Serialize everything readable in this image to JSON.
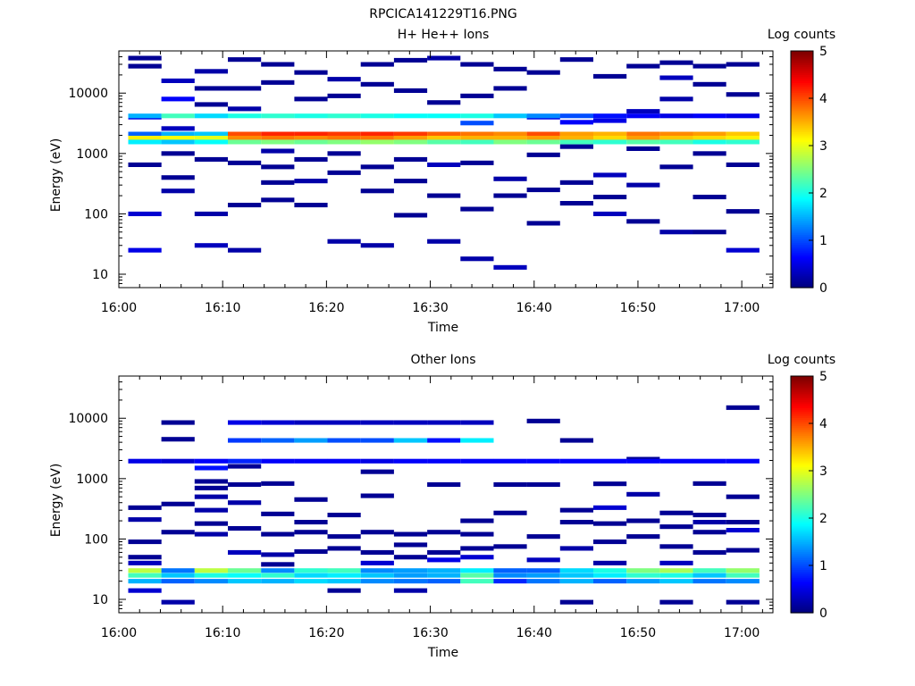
{
  "file_title": "RPCICA141229T16.PNG",
  "chart_data": [
    {
      "type": "heatmap",
      "title": "H+ He++ Ions",
      "xlabel": "Time",
      "ylabel": "Energy (eV)",
      "colorbar_label": "Log counts",
      "x_ticks": [
        "16:00",
        "16:10",
        "16:20",
        "16:30",
        "16:40",
        "16:50",
        "17:00"
      ],
      "y_ticks": [
        "10",
        "100",
        "1000",
        "10000"
      ],
      "colorbar_ticks": [
        "0",
        "1",
        "2",
        "3",
        "4",
        "5"
      ],
      "xlim_minutes": [
        0,
        63
      ],
      "ylim_eV": [
        6,
        50000
      ],
      "y_scale": "log",
      "clim": [
        0,
        5
      ],
      "colormap": "jet",
      "time_bins_start_min": [
        0.9,
        4.1,
        7.3,
        10.5,
        13.7,
        16.9,
        20.1,
        23.3,
        26.5,
        29.7,
        32.9,
        36.1,
        39.3,
        42.5,
        45.7,
        48.9,
        52.1,
        55.3,
        58.5
      ],
      "bin_width_min": 3.2,
      "bands": [
        {
          "e": 2100,
          "v": [
            1.1,
            1.5,
            1.6,
            4.0,
            4.2,
            4.2,
            4.1,
            4.2,
            4.1,
            3.9,
            3.8,
            3.7,
            4.0,
            3.6,
            3.5,
            3.8,
            3.7,
            3.6,
            3.4
          ]
        },
        {
          "e": 1800,
          "v": [
            3.2,
            3.1,
            3.0,
            3.7,
            3.8,
            3.7,
            3.8,
            3.8,
            3.6,
            3.4,
            3.5,
            3.5,
            3.6,
            3.5,
            3.3,
            3.6,
            3.4,
            3.3,
            3.2
          ]
        },
        {
          "e": 1550,
          "v": [
            1.8,
            1.6,
            1.9,
            2.4,
            2.5,
            2.4,
            2.5,
            2.6,
            2.5,
            2.3,
            2.2,
            2.5,
            2.4,
            2.2,
            2.1,
            2.3,
            2.2,
            2.0,
            2.1
          ]
        },
        {
          "e": 4200,
          "v": [
            1.5,
            2.2,
            1.7,
            2.0,
            2.1,
            2.0,
            2.1,
            2.0,
            1.9,
            1.9,
            2.0,
            1.6,
            1.3,
            1.0,
            0.7,
            0.6,
            0.5,
            0.6,
            0.5
          ]
        }
      ],
      "sparse_cells": [
        [
          0,
          38000,
          0.1
        ],
        [
          0,
          28000,
          0.1
        ],
        [
          0,
          4000,
          0.5
        ],
        [
          0,
          650,
          0.1
        ],
        [
          0,
          100,
          0.4
        ],
        [
          0,
          28000,
          0.1
        ],
        [
          0,
          25,
          0.5
        ],
        [
          1,
          16000,
          0.3
        ],
        [
          1,
          8000,
          0.6
        ],
        [
          1,
          2600,
          0.3
        ],
        [
          1,
          1000,
          0.1
        ],
        [
          1,
          240,
          0.2
        ],
        [
          1,
          400,
          0.1
        ],
        [
          2,
          23000,
          0.2
        ],
        [
          2,
          12000,
          0.1
        ],
        [
          2,
          6500,
          0.1
        ],
        [
          2,
          800,
          0.1
        ],
        [
          2,
          100,
          0.2
        ],
        [
          2,
          30,
          0.3
        ],
        [
          3,
          36000,
          0.1
        ],
        [
          3,
          12000,
          0.1
        ],
        [
          3,
          5500,
          0.2
        ],
        [
          3,
          700,
          0.1
        ],
        [
          3,
          140,
          0.1
        ],
        [
          3,
          25,
          0.2
        ],
        [
          4,
          30000,
          0.1
        ],
        [
          4,
          15000,
          0.1
        ],
        [
          4,
          1100,
          0.2
        ],
        [
          4,
          600,
          0.1
        ],
        [
          4,
          330,
          0.1
        ],
        [
          4,
          170,
          0.1
        ],
        [
          5,
          22000,
          0.1
        ],
        [
          5,
          8000,
          0.1
        ],
        [
          5,
          800,
          0.1
        ],
        [
          5,
          350,
          0.2
        ],
        [
          5,
          140,
          0.1
        ],
        [
          6,
          17000,
          0.2
        ],
        [
          6,
          9000,
          0.1
        ],
        [
          6,
          1000,
          0.1
        ],
        [
          6,
          480,
          0.1
        ],
        [
          6,
          35,
          0.2
        ],
        [
          7,
          30000,
          0.1
        ],
        [
          7,
          14000,
          0.1
        ],
        [
          7,
          600,
          0.1
        ],
        [
          7,
          240,
          0.1
        ],
        [
          7,
          30,
          0.2
        ],
        [
          8,
          35000,
          0.1
        ],
        [
          8,
          11000,
          0.1
        ],
        [
          8,
          800,
          0.1
        ],
        [
          8,
          350,
          0.1
        ],
        [
          8,
          95,
          0.1
        ],
        [
          9,
          38000,
          0.2
        ],
        [
          9,
          7000,
          0.1
        ],
        [
          9,
          650,
          0.3
        ],
        [
          9,
          200,
          0.1
        ],
        [
          9,
          35,
          0.2
        ],
        [
          10,
          30000,
          0.1
        ],
        [
          10,
          9000,
          0.1
        ],
        [
          10,
          3200,
          1.0
        ],
        [
          10,
          700,
          0.1
        ],
        [
          10,
          120,
          0.1
        ],
        [
          10,
          18,
          0.2
        ],
        [
          11,
          25000,
          0.1
        ],
        [
          11,
          12000,
          0.1
        ],
        [
          11,
          380,
          0.2
        ],
        [
          11,
          200,
          0.1
        ],
        [
          11,
          13,
          0.3
        ],
        [
          12,
          22000,
          0.1
        ],
        [
          12,
          4000,
          0.5
        ],
        [
          12,
          950,
          0.1
        ],
        [
          12,
          250,
          0.1
        ],
        [
          12,
          70,
          0.1
        ],
        [
          13,
          36000,
          0.1
        ],
        [
          13,
          3300,
          0.6
        ],
        [
          13,
          1300,
          0.1
        ],
        [
          13,
          330,
          0.1
        ],
        [
          13,
          150,
          0.1
        ],
        [
          14,
          19000,
          0.1
        ],
        [
          14,
          3500,
          0.5
        ],
        [
          14,
          440,
          0.3
        ],
        [
          14,
          190,
          0.1
        ],
        [
          14,
          100,
          0.3
        ],
        [
          15,
          28000,
          0.1
        ],
        [
          15,
          5000,
          0.3
        ],
        [
          15,
          1200,
          0.1
        ],
        [
          15,
          300,
          0.2
        ],
        [
          15,
          75,
          0.1
        ],
        [
          16,
          32000,
          0.1
        ],
        [
          16,
          18000,
          0.3
        ],
        [
          16,
          8000,
          0.2
        ],
        [
          16,
          600,
          0.1
        ],
        [
          16,
          50,
          0.2
        ],
        [
          17,
          28000,
          0.1
        ],
        [
          17,
          14000,
          0.1
        ],
        [
          17,
          1000,
          0.1
        ],
        [
          17,
          190,
          0.1
        ],
        [
          17,
          50,
          0.1
        ],
        [
          18,
          30000,
          0.1
        ],
        [
          18,
          9500,
          0.1
        ],
        [
          18,
          650,
          0.1
        ],
        [
          18,
          110,
          0.1
        ],
        [
          18,
          25,
          0.4
        ]
      ]
    },
    {
      "type": "heatmap",
      "title": "Other Ions",
      "xlabel": "Time",
      "ylabel": "Energy (eV)",
      "colorbar_label": "Log counts",
      "x_ticks": [
        "16:00",
        "16:10",
        "16:20",
        "16:30",
        "16:40",
        "16:50",
        "17:00"
      ],
      "y_ticks": [
        "10",
        "100",
        "1000",
        "10000"
      ],
      "colorbar_ticks": [
        "0",
        "1",
        "2",
        "3",
        "4",
        "5"
      ],
      "xlim_minutes": [
        0,
        63
      ],
      "ylim_eV": [
        6,
        50000
      ],
      "y_scale": "log",
      "clim": [
        0,
        5
      ],
      "colormap": "jet",
      "time_bins_start_min": [
        0.9,
        4.1,
        7.3,
        10.5,
        13.7,
        16.9,
        20.1,
        23.3,
        26.5,
        29.7,
        32.9,
        36.1,
        39.3,
        42.5,
        45.7,
        48.9,
        52.1,
        55.3,
        58.5
      ],
      "bin_width_min": 3.2,
      "bands": [
        {
          "e": 30,
          "v": [
            2.8,
            1.2,
            2.8,
            2.4,
            1.3,
            2.1,
            2.2,
            1.3,
            1.4,
            1.5,
            1.8,
            1.1,
            1.1,
            1.7,
            2.0,
            2.5,
            2.7,
            2.2,
            2.6
          ]
        },
        {
          "e": 25,
          "v": [
            2.2,
            1.6,
            2.0,
            1.9,
            2.1,
            1.7,
            1.8,
            1.6,
            1.4,
            1.5,
            2.3,
            1.3,
            1.4,
            1.6,
            1.8,
            2.1,
            2.0,
            1.6,
            2.2
          ]
        },
        {
          "e": 20,
          "v": [
            1.5,
            1.1,
            1.3,
            1.6,
            1.5,
            1.7,
            1.6,
            1.3,
            1.2,
            1.1,
            2.2,
            0.8,
            1.2,
            1.5,
            1.1,
            1.4,
            1.6,
            1.2,
            1.3
          ]
        },
        {
          "e": 1950,
          "v": [
            0.5,
            0.4,
            0.6,
            0.8,
            0.6,
            0.6,
            0.6,
            0.5,
            0.6,
            0.6,
            0.6,
            0.6,
            0.6,
            0.6,
            0.6,
            0.6,
            0.6,
            0.6,
            0.6
          ]
        },
        {
          "e": 4300,
          "v": [
            0,
            0,
            0,
            0.9,
            1.1,
            1.4,
            1.0,
            1.0,
            1.6,
            0.7,
            1.8,
            0,
            0,
            0,
            0,
            0,
            0,
            0,
            0
          ]
        },
        {
          "e": 8500,
          "v": [
            0,
            0,
            0,
            0.5,
            0.4,
            0.3,
            0.3,
            0.3,
            0.3,
            0.3,
            0.3,
            0,
            0,
            0,
            0,
            0,
            0,
            0,
            0
          ]
        }
      ],
      "sparse_cells": [
        [
          0,
          210,
          0.2
        ],
        [
          0,
          90,
          0.1
        ],
        [
          0,
          50,
          0.1
        ],
        [
          0,
          40,
          0.3
        ],
        [
          0,
          14,
          0.4
        ],
        [
          0,
          330,
          0.1
        ],
        [
          1,
          8500,
          0.1
        ],
        [
          1,
          4500,
          0.1
        ],
        [
          1,
          380,
          0.1
        ],
        [
          1,
          130,
          0.1
        ],
        [
          1,
          9,
          0.2
        ],
        [
          2,
          1500,
          0.7
        ],
        [
          2,
          900,
          0.1
        ],
        [
          2,
          700,
          0.1
        ],
        [
          2,
          500,
          0.2
        ],
        [
          2,
          300,
          0.2
        ],
        [
          2,
          180,
          0.1
        ],
        [
          2,
          120,
          0.2
        ],
        [
          3,
          1600,
          0.1
        ],
        [
          3,
          800,
          0.1
        ],
        [
          3,
          400,
          0.2
        ],
        [
          3,
          150,
          0.1
        ],
        [
          3,
          60,
          0.3
        ],
        [
          4,
          830,
          0.1
        ],
        [
          4,
          260,
          0.1
        ],
        [
          4,
          120,
          0.1
        ],
        [
          4,
          55,
          0.2
        ],
        [
          4,
          38,
          0.1
        ],
        [
          5,
          450,
          0.1
        ],
        [
          5,
          190,
          0.1
        ],
        [
          5,
          130,
          0.1
        ],
        [
          5,
          62,
          0.1
        ],
        [
          6,
          250,
          0.1
        ],
        [
          6,
          110,
          0.1
        ],
        [
          6,
          70,
          0.1
        ],
        [
          6,
          14,
          0.1
        ],
        [
          7,
          1300,
          0.1
        ],
        [
          7,
          520,
          0.1
        ],
        [
          7,
          130,
          0.1
        ],
        [
          7,
          60,
          0.1
        ],
        [
          7,
          40,
          0.4
        ],
        [
          8,
          120,
          0.1
        ],
        [
          8,
          80,
          0.1
        ],
        [
          8,
          50,
          0.1
        ],
        [
          8,
          14,
          0.2
        ],
        [
          9,
          800,
          0.1
        ],
        [
          9,
          130,
          0.1
        ],
        [
          9,
          60,
          0.1
        ],
        [
          9,
          45,
          0.5
        ],
        [
          10,
          200,
          0.1
        ],
        [
          10,
          120,
          0.1
        ],
        [
          10,
          70,
          0.1
        ],
        [
          10,
          50,
          0.4
        ],
        [
          11,
          800,
          0.1
        ],
        [
          11,
          270,
          0.1
        ],
        [
          11,
          75,
          0.1
        ],
        [
          12,
          9000,
          0.1
        ],
        [
          12,
          800,
          0.1
        ],
        [
          12,
          110,
          0.1
        ],
        [
          12,
          45,
          0.3
        ],
        [
          13,
          4300,
          0.1
        ],
        [
          13,
          300,
          0.1
        ],
        [
          13,
          190,
          0.1
        ],
        [
          13,
          70,
          0.2
        ],
        [
          13,
          9,
          0.1
        ],
        [
          14,
          820,
          0.1
        ],
        [
          14,
          330,
          0.4
        ],
        [
          14,
          180,
          0.1
        ],
        [
          14,
          90,
          0.1
        ],
        [
          14,
          40,
          0.2
        ],
        [
          15,
          2100,
          0.1
        ],
        [
          15,
          550,
          0.2
        ],
        [
          15,
          200,
          0.1
        ],
        [
          15,
          110,
          0.1
        ],
        [
          16,
          270,
          0.1
        ],
        [
          16,
          160,
          0.1
        ],
        [
          16,
          75,
          0.1
        ],
        [
          16,
          40,
          0.3
        ],
        [
          16,
          9,
          0.1
        ],
        [
          17,
          830,
          0.1
        ],
        [
          17,
          250,
          0.1
        ],
        [
          17,
          190,
          0.2
        ],
        [
          17,
          130,
          0.1
        ],
        [
          17,
          60,
          0.1
        ],
        [
          18,
          15000,
          0.1
        ],
        [
          18,
          500,
          0.1
        ],
        [
          18,
          190,
          0.1
        ],
        [
          18,
          140,
          0.4
        ],
        [
          18,
          65,
          0.1
        ],
        [
          18,
          9,
          0.1
        ]
      ]
    }
  ]
}
